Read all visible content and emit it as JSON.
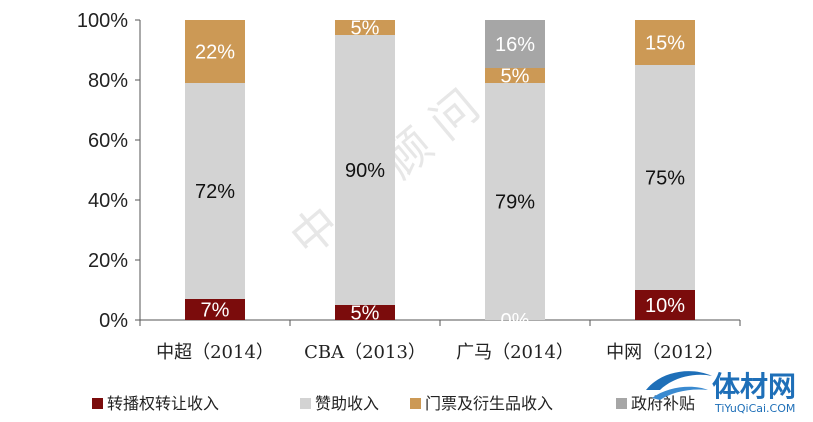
{
  "chart_data": {
    "type": "bar",
    "stacked": true,
    "percent": true,
    "categories": [
      "中超（2014）",
      "CBA（2013）",
      "广马（2014）",
      "中网（2012）"
    ],
    "series": [
      {
        "name": "转播权转让收入",
        "color": "#7b0c0c",
        "values": [
          7,
          5,
          0,
          10
        ],
        "labels": [
          "7%",
          "5%",
          "0%",
          "10%"
        ]
      },
      {
        "name": "赞助收入",
        "color": "#d3d3d3",
        "values": [
          72,
          90,
          79,
          75
        ],
        "labels": [
          "72%",
          "90%",
          "79%",
          "75%"
        ]
      },
      {
        "name": "门票及衍生品收入",
        "color": "#cc9955",
        "values": [
          22,
          5,
          5,
          15
        ],
        "labels": [
          "22%",
          "5%",
          "5%",
          "15%"
        ]
      },
      {
        "name": "政府补贴",
        "color": "#a6a6a6",
        "values": [
          0,
          0,
          16,
          0
        ],
        "labels": [
          "",
          "",
          "16%",
          ""
        ]
      }
    ],
    "yticks": [
      "0%",
      "20%",
      "40%",
      "60%",
      "80%",
      "100%"
    ],
    "ylim": [
      0,
      100
    ],
    "grid": false,
    "legend": "bottom"
  },
  "watermark": "中 投 顾 问",
  "logo": {
    "name": "体材网",
    "sub": "TiYuQiCai.COM"
  }
}
